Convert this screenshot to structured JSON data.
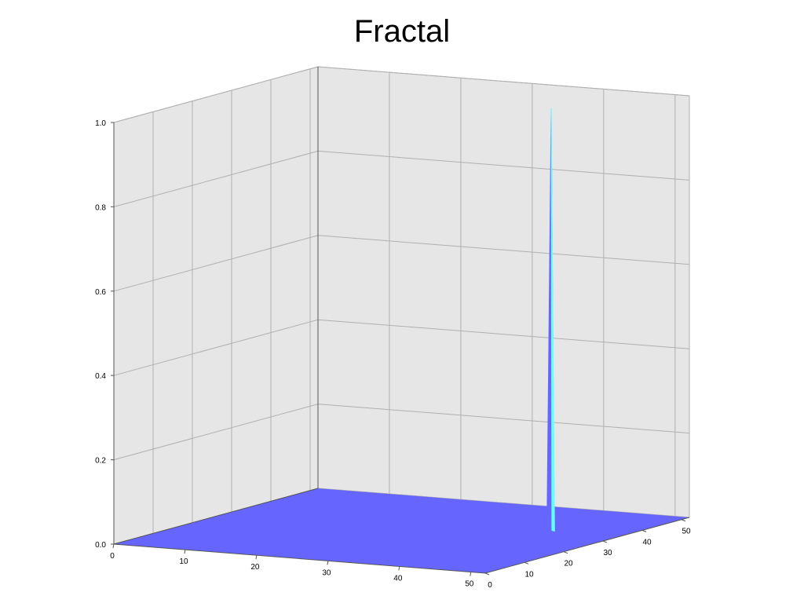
{
  "chart_data": {
    "type": "surface3d",
    "title": "Fractal",
    "xlabel": "",
    "ylabel": "",
    "zlabel": "",
    "x_ticks": [
      "0",
      "10",
      "20",
      "30",
      "40",
      "50"
    ],
    "y_ticks": [
      "0",
      "10",
      "20",
      "30",
      "40",
      "50"
    ],
    "z_ticks": [
      "0.0",
      "0.2",
      "0.4",
      "0.6",
      "0.8",
      "1.0"
    ],
    "xlim": [
      0,
      52
    ],
    "ylim": [
      0,
      52
    ],
    "zlim": [
      0,
      1.0
    ],
    "grid": true,
    "surface": {
      "base_value": 0.0,
      "peak": {
        "x": 42,
        "y": 35,
        "z": 1.0
      }
    }
  },
  "colors": {
    "surface": "#6666ff",
    "peak_highlight": "#66ffff",
    "pane": "#e6e6e6",
    "grid": "#b0b0b0",
    "axis": "#555555"
  }
}
